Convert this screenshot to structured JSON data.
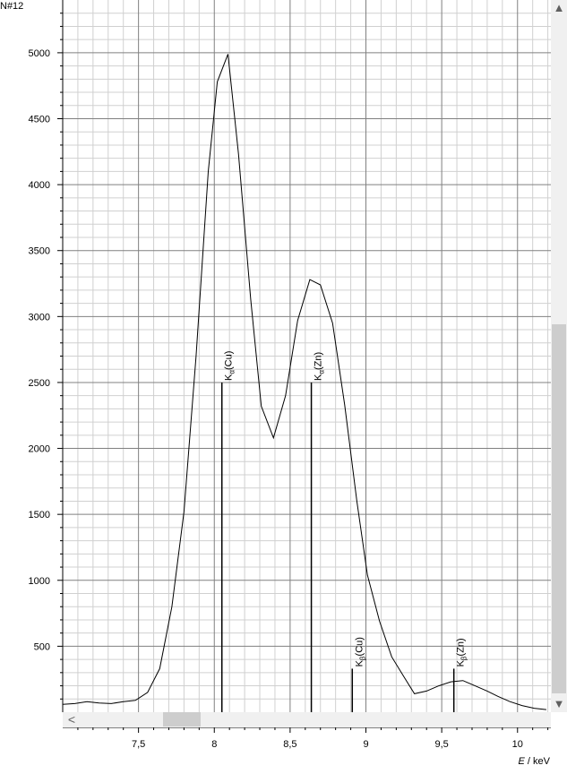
{
  "chart_data": {
    "type": "line",
    "ylabel": "N#12",
    "xlabel_var": "E",
    "xlabel_unit": " / keV",
    "xlim": [
      7.0,
      10.22
    ],
    "ylim": [
      0,
      5400
    ],
    "x_ticks": [
      7.5,
      8.0,
      8.5,
      9.0,
      9.5,
      10.0
    ],
    "x_tick_labels": [
      "7,5",
      "8",
      "8,5",
      "9",
      "9,5",
      "10"
    ],
    "y_ticks": [
      500,
      1000,
      1500,
      2000,
      2500,
      3000,
      3500,
      4000,
      4500,
      5000
    ],
    "y_tick_labels": [
      "500",
      "1000",
      "1500",
      "2000",
      "2500",
      "3000",
      "3500",
      "4000",
      "4500",
      "5000"
    ],
    "grid": true,
    "series": [
      {
        "x": [
          7.0,
          7.08,
          7.16,
          7.24,
          7.32,
          7.4,
          7.48,
          7.56,
          7.64,
          7.72,
          7.8,
          7.88,
          7.96,
          8.02,
          8.09,
          8.16,
          8.24,
          8.31,
          8.39,
          8.47,
          8.55,
          8.63,
          8.7,
          8.78,
          8.86,
          8.94,
          9.01,
          9.09,
          9.17,
          9.25,
          9.32,
          9.4,
          9.48,
          9.56,
          9.64,
          9.72,
          9.8,
          9.87,
          9.95,
          10.03,
          10.11,
          10.19
        ],
        "y": [
          60,
          65,
          80,
          70,
          65,
          80,
          90,
          150,
          330,
          800,
          1520,
          2700,
          4100,
          4780,
          4990,
          4230,
          3130,
          2320,
          2080,
          2400,
          2970,
          3280,
          3240,
          2950,
          2330,
          1600,
          1040,
          690,
          420,
          270,
          140,
          160,
          200,
          230,
          240,
          200,
          160,
          120,
          80,
          50,
          30,
          20
        ]
      }
    ],
    "lines": [
      {
        "name": "Kα(Cu)",
        "base": "K",
        "subscript": "α",
        "element": "(Cu)",
        "x": 8.05,
        "y": 2500
      },
      {
        "name": "Kα(Zn)",
        "base": "K",
        "subscript": "α",
        "element": "(Zn)",
        "x": 8.64,
        "y": 2500
      },
      {
        "name": "Kβ(Cu)",
        "base": "K",
        "subscript": "β",
        "element": "(Cu)",
        "x": 8.91,
        "y": 330
      },
      {
        "name": "Kβ(Zn)",
        "base": "K",
        "subscript": "β",
        "element": "(Zn)",
        "x": 9.58,
        "y": 330
      }
    ]
  },
  "scrollbars": {
    "left_arrow_icon": "chevron-left-icon",
    "up_arrow_icon": "chevron-up-icon",
    "down_arrow_icon": "chevron-down-icon",
    "left_arrow": "<",
    "up_arrow": "▲",
    "down_arrow": "▼"
  }
}
